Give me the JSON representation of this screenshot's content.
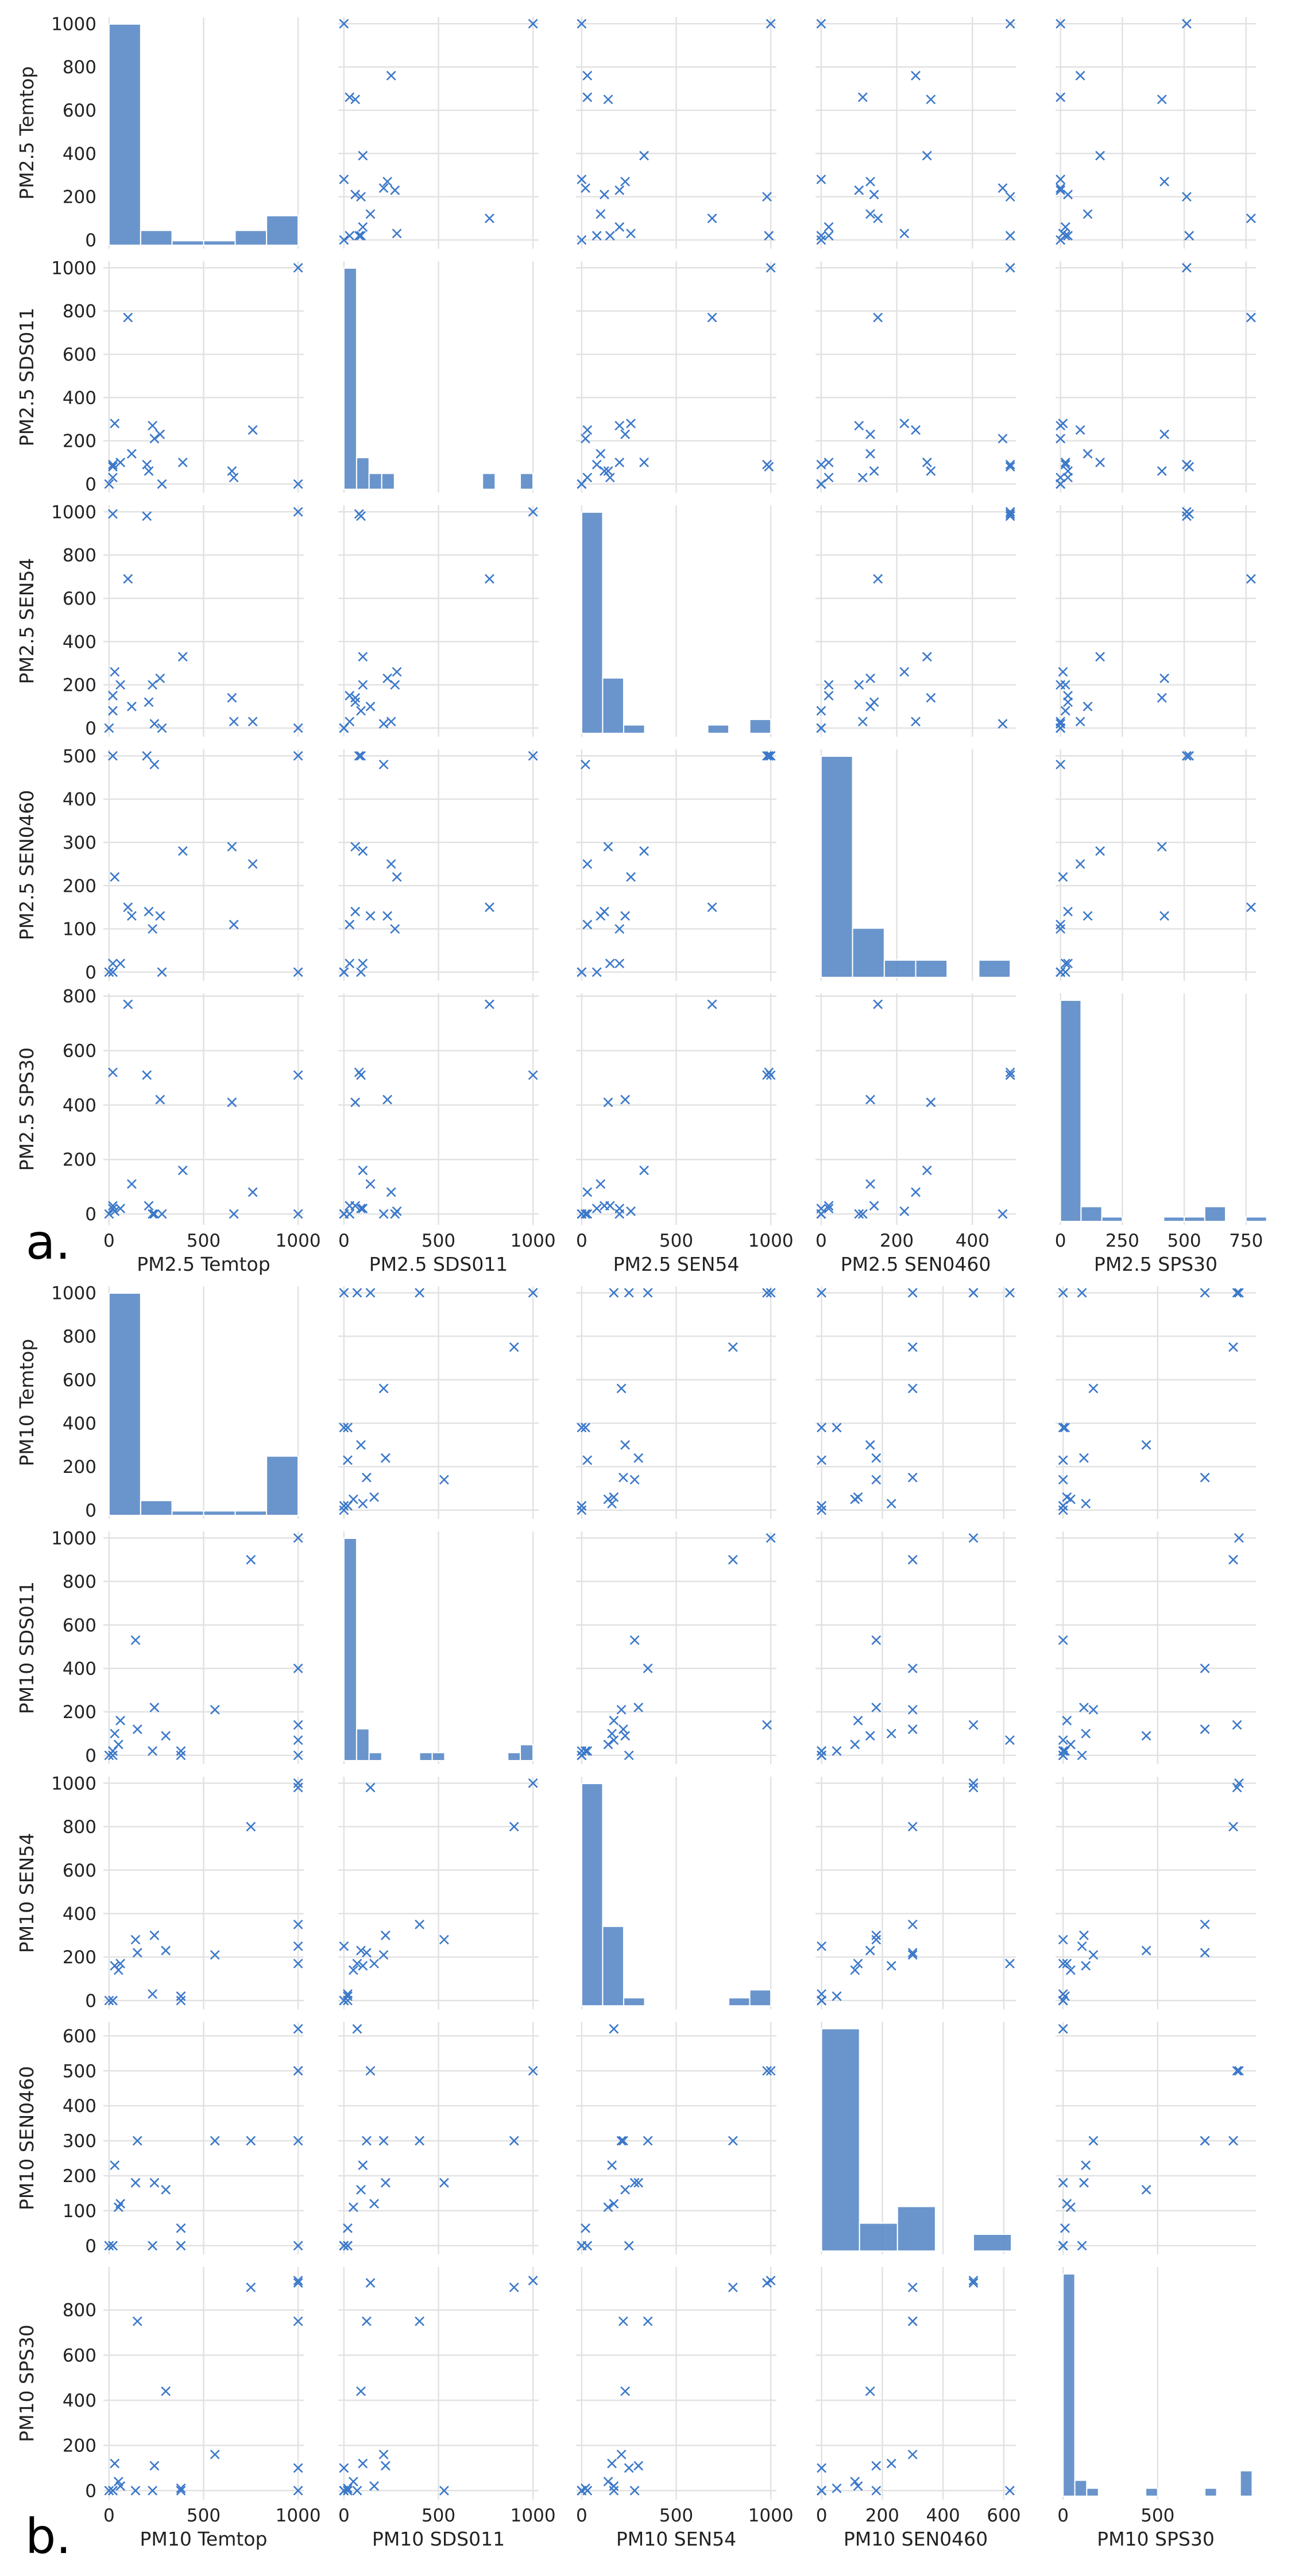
{
  "style": {
    "bar_color": "#5a8ac6",
    "marker_color": "#3b78c9",
    "grid_color": "#e2e2e2",
    "marker": "x"
  },
  "chart_data": [
    {
      "type": "scatter",
      "panel_label": "a.",
      "title": "",
      "variables": [
        "PM2.5 Temtop",
        "PM2.5 SDS011",
        "PM2.5 SEN54",
        "PM2.5 SEN0460",
        "PM2.5 SPS30"
      ],
      "ranges": [
        [
          -30,
          1030
        ],
        [
          -30,
          1030
        ],
        [
          -30,
          1030
        ],
        [
          -15,
          515
        ],
        [
          -20,
          790
        ]
      ],
      "ticks": [
        [
          0,
          500,
          1000
        ],
        [
          0,
          500,
          1000
        ],
        [
          0,
          500,
          1000
        ],
        [
          0,
          200,
          400
        ],
        [
          0,
          250,
          500,
          750
        ]
      ],
      "ylim_rows": [
        [
          -40,
          1030
        ],
        [
          -40,
          1030
        ],
        [
          -40,
          1030
        ],
        [
          -20,
          515
        ],
        [
          -40,
          810
        ]
      ],
      "yticks_rows": [
        [
          0,
          200,
          400,
          600,
          800,
          1000
        ],
        [
          0,
          200,
          400,
          600,
          800,
          1000
        ],
        [
          0,
          200,
          400,
          600,
          800,
          1000
        ],
        [
          0,
          100,
          200,
          300,
          400,
          500
        ],
        [
          0,
          200,
          400,
          600,
          800
        ]
      ],
      "yticklabels_rows": [
        [
          "0",
          "200",
          "400",
          "600",
          "800",
          "1000"
        ],
        [
          "0",
          "200",
          "400",
          "600",
          "800",
          "1000"
        ],
        [
          "0",
          "200",
          "400",
          "600",
          "800",
          "1000"
        ],
        [
          "0",
          "100",
          "200",
          "300",
          "400",
          "500"
        ],
        [
          "0",
          "200",
          "400",
          "600",
          "800"
        ]
      ],
      "histograms": [
        {
          "edges": [
            0,
            167,
            333,
            500,
            667,
            833,
            1000
          ],
          "counts": [
            15,
            1,
            0.3,
            0.3,
            1,
            2
          ]
        },
        {
          "edges": [
            0,
            67,
            133,
            200,
            267,
            733,
            800,
            933,
            1000
          ],
          "counts": [
            14,
            2,
            1,
            1,
            0,
            1,
            0,
            1
          ]
        },
        {
          "edges": [
            0,
            111,
            222,
            333,
            667,
            778,
            889,
            1000
          ],
          "counts": [
            16,
            4,
            0.6,
            0,
            0.6,
            0,
            1
          ]
        },
        {
          "edges": [
            0,
            83,
            167,
            250,
            333,
            417,
            500
          ],
          "counts": [
            9,
            2,
            0.7,
            0.7,
            0,
            0.7
          ]
        },
        {
          "edges": [
            0,
            83,
            167,
            250,
            333,
            417,
            500,
            583,
            667,
            750,
            833
          ],
          "counts": [
            15,
            1,
            0.3,
            0,
            0,
            0.3,
            0.3,
            1,
            0,
            0.3
          ]
        }
      ],
      "points": [
        [
          1000,
          0,
          0,
          0,
          0
        ],
        [
          280,
          0,
          0,
          0,
          0
        ],
        [
          0,
          0,
          0,
          0,
          0
        ],
        [
          100,
          770,
          690,
          150,
          770
        ],
        [
          270,
          230,
          230,
          130,
          420
        ],
        [
          390,
          100,
          330,
          280,
          160
        ],
        [
          660,
          30,
          30,
          110,
          0
        ],
        [
          120,
          140,
          100,
          130,
          110
        ],
        [
          760,
          250,
          30,
          250,
          80
        ],
        [
          210,
          60,
          120,
          140,
          30
        ],
        [
          230,
          270,
          200,
          100,
          0
        ],
        [
          1000,
          1000,
          1000,
          500,
          510
        ],
        [
          20,
          30,
          150,
          20,
          30
        ],
        [
          650,
          60,
          140,
          290,
          410
        ],
        [
          60,
          100,
          200,
          20,
          20
        ],
        [
          20,
          80,
          990,
          500,
          520
        ],
        [
          200,
          90,
          980,
          500,
          510
        ],
        [
          240,
          210,
          20,
          480,
          0
        ],
        [
          20,
          90,
          80,
          0,
          20
        ],
        [
          30,
          280,
          260,
          220,
          10
        ]
      ]
    },
    {
      "type": "scatter",
      "panel_label": "b.",
      "title": "",
      "variables": [
        "PM10 Temtop",
        "PM10 SDS011",
        "PM10 SEN54",
        "PM10 SEN0460",
        "PM10 SPS30"
      ],
      "ranges": [
        [
          -30,
          1030
        ],
        [
          -30,
          1030
        ],
        [
          -30,
          1030
        ],
        [
          -20,
          640
        ],
        [
          -40,
          1020
        ]
      ],
      "ticks": [
        [
          0,
          500,
          1000
        ],
        [
          0,
          500,
          1000
        ],
        [
          0,
          500,
          1000
        ],
        [
          0,
          200,
          400,
          600
        ],
        [
          0,
          500
        ]
      ],
      "ylim_rows": [
        [
          -40,
          1030
        ],
        [
          -40,
          1030
        ],
        [
          -40,
          1030
        ],
        [
          -25,
          640
        ],
        [
          -40,
          990
        ]
      ],
      "yticks_rows": [
        [
          0,
          200,
          400,
          600,
          800,
          1000
        ],
        [
          0,
          200,
          400,
          600,
          800,
          1000
        ],
        [
          0,
          200,
          400,
          600,
          800,
          1000
        ],
        [
          0,
          100,
          200,
          300,
          400,
          500,
          600
        ],
        [
          0,
          200,
          400,
          600,
          800
        ]
      ],
      "yticklabels_rows": [
        [
          "0",
          "200",
          "400",
          "600",
          "800",
          "1000"
        ],
        [
          "0",
          "200",
          "400",
          "600",
          "800",
          "1000"
        ],
        [
          "0",
          "200",
          "400",
          "600",
          "800",
          "1000"
        ],
        [
          "0",
          "100",
          "200",
          "300",
          "400",
          "500",
          "600"
        ],
        [
          "0",
          "200",
          "400",
          "600",
          "800"
        ]
      ],
      "histograms": [
        {
          "edges": [
            0,
            167,
            333,
            500,
            667,
            833,
            1000
          ],
          "counts": [
            15,
            1,
            0.3,
            0.3,
            0.3,
            4
          ]
        },
        {
          "edges": [
            0,
            67,
            133,
            200,
            267,
            400,
            467,
            533,
            867,
            933,
            1000
          ],
          "counts": [
            14,
            2,
            0.5,
            0,
            0,
            0.5,
            0.5,
            0,
            0.5,
            1
          ]
        },
        {
          "edges": [
            0,
            111,
            222,
            333,
            778,
            889,
            1000
          ],
          "counts": [
            14,
            5,
            0.5,
            0,
            0.5,
            1
          ]
        },
        {
          "edges": [
            0,
            125,
            250,
            375,
            500,
            625
          ],
          "counts": [
            8,
            1,
            1.6,
            0,
            0.6
          ]
        },
        {
          "edges": [
            0,
            62,
            125,
            187,
            250,
            437,
            500,
            750,
            812,
            937,
            1000
          ],
          "counts": [
            14,
            1,
            0.5,
            0,
            0,
            0.5,
            0,
            0.5,
            0,
            1.6
          ]
        }
      ],
      "points": [
        [
          1000,
          1000,
          1000,
          500,
          930
        ],
        [
          1000,
          140,
          980,
          500,
          920
        ],
        [
          1000,
          400,
          350,
          300,
          750
        ],
        [
          1000,
          70,
          170,
          620,
          0
        ],
        [
          1000,
          0,
          250,
          0,
          100
        ],
        [
          750,
          900,
          800,
          300,
          900
        ],
        [
          560,
          210,
          210,
          300,
          160
        ],
        [
          380,
          0,
          0,
          0,
          0
        ],
        [
          0,
          0,
          0,
          0,
          0
        ],
        [
          20,
          0,
          0,
          0,
          0
        ],
        [
          300,
          90,
          230,
          160,
          440
        ],
        [
          140,
          530,
          280,
          180,
          0
        ],
        [
          230,
          20,
          30,
          0,
          0
        ],
        [
          50,
          50,
          140,
          110,
          40
        ],
        [
          30,
          100,
          160,
          230,
          120
        ],
        [
          380,
          20,
          20,
          50,
          10
        ],
        [
          20,
          20,
          0,
          0,
          0
        ],
        [
          60,
          160,
          170,
          120,
          20
        ],
        [
          150,
          120,
          220,
          300,
          750
        ],
        [
          240,
          220,
          300,
          180,
          110
        ]
      ]
    }
  ]
}
